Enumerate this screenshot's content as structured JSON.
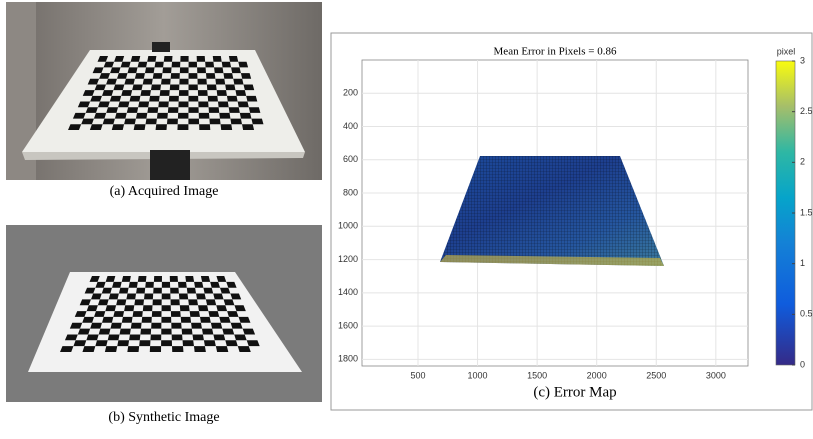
{
  "panels": {
    "acquired": {
      "caption": "(a) Acquired Image"
    },
    "synthetic": {
      "caption": "(b) Synthetic Image"
    }
  },
  "chart_data": {
    "type": "image",
    "title": "Mean Error in Pixels = 0.86",
    "caption": "(c) Error Map",
    "xlim": [
      30,
      3270
    ],
    "xticks": [
      500,
      1000,
      1500,
      2000,
      2500,
      3000
    ],
    "ylim": [
      0,
      1840
    ],
    "y_reversed": true,
    "yticks": [
      200,
      400,
      600,
      800,
      1000,
      1200,
      1400,
      1600,
      1800
    ],
    "grid": true,
    "colorbar": {
      "label": "pixel",
      "clim": [
        0,
        3
      ],
      "ticks": [
        0,
        0.5,
        1,
        1.5,
        2,
        2.5,
        3
      ]
    }
  }
}
